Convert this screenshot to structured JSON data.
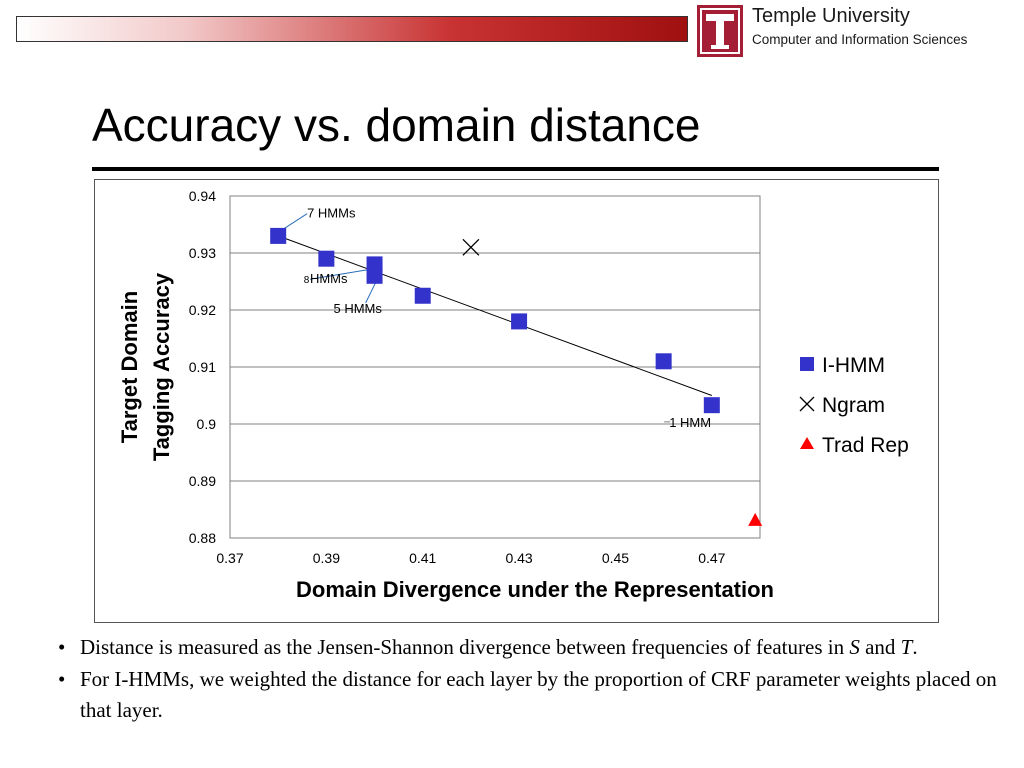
{
  "header": {
    "university": "Temple University",
    "department": "Computer and Information Sciences"
  },
  "slide": {
    "title": "Accuracy vs. domain distance"
  },
  "chart_data": {
    "type": "scatter",
    "xlabel": "Domain Divergence under the Representation",
    "ylabel_line1": "Target Domain",
    "ylabel_line2": "Tagging Accuracy",
    "xlim": [
      0.37,
      0.48
    ],
    "ylim": [
      0.88,
      0.94
    ],
    "x_ticks": [
      "0.37",
      "0.39",
      "0.41",
      "0.43",
      "0.45",
      "0.47"
    ],
    "y_ticks": [
      "0.88",
      "0.89",
      "0.9",
      "0.91",
      "0.92",
      "0.93",
      "0.94"
    ],
    "grid": "horizontal",
    "legend_position": "right",
    "series": [
      {
        "name": "I-HMM",
        "marker": "square",
        "color": "#3333cc",
        "points": [
          [
            0.38,
            0.933
          ],
          [
            0.39,
            0.929
          ],
          [
            0.4,
            0.928
          ],
          [
            0.4,
            0.926
          ],
          [
            0.41,
            0.9225
          ],
          [
            0.43,
            0.918
          ],
          [
            0.46,
            0.911
          ],
          [
            0.47,
            0.9033
          ]
        ]
      },
      {
        "name": "Ngram",
        "marker": "x",
        "color": "#000000",
        "points": [
          [
            0.42,
            0.931
          ]
        ]
      },
      {
        "name": "Trad Rep",
        "marker": "triangle",
        "color": "#ff0000",
        "points": [
          [
            0.479,
            0.883
          ]
        ]
      }
    ],
    "trendline": {
      "from": [
        0.38,
        0.933
      ],
      "to": [
        0.47,
        0.905
      ]
    },
    "annotations": [
      {
        "text": "7 HMMs",
        "x": 0.386,
        "y": 0.9362,
        "leader_to": [
          0.3798,
          0.9335
        ]
      },
      {
        "text": "8",
        "x": 0.3853,
        "y": 0.9247
      },
      {
        "text": "HMMs",
        "x": 0.3866,
        "y": 0.9247,
        "leader_to": [
          0.3995,
          0.9272
        ]
      },
      {
        "text": "5 HMMs",
        "x": 0.3965,
        "y": 0.9195,
        "leader_to": [
          0.4008,
          0.9258
        ]
      },
      {
        "text": "1 HMM",
        "x": 0.4655,
        "y": 0.8995
      }
    ]
  },
  "bullets": [
    {
      "pre": "Distance is measured as the Jensen-Shannon divergence between frequencies of features in ",
      "s": "S",
      "mid": " and ",
      "t": "T",
      "post": "."
    },
    {
      "text": "For I-HMMs, we weighted the distance for each layer by the proportion of CRF parameter weights placed on that layer."
    }
  ]
}
